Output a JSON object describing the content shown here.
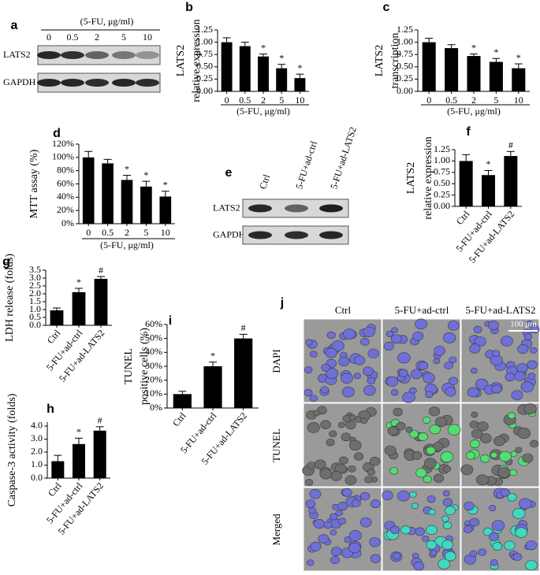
{
  "chart_data": [
    {
      "type": "bar",
      "panel": "b",
      "ylabel": [
        "LATS2",
        "relative expression"
      ],
      "xlabel": "(5-FU, μg/ml)",
      "categories": [
        "0",
        "0.5",
        "2",
        "5",
        "10"
      ],
      "values": [
        1.0,
        0.92,
        0.71,
        0.47,
        0.27
      ],
      "errors": [
        0.09,
        0.08,
        0.05,
        0.08,
        0.08
      ],
      "annotations": [
        null,
        null,
        "*",
        "*",
        "*"
      ],
      "color": "#000000",
      "ylim": [
        0,
        1.25
      ],
      "yticks": [
        {
          "value": 0,
          "label": "0.00"
        },
        0.25,
        {
          "value": 0.5,
          "label": "0.50"
        },
        0.75,
        {
          "value": 1,
          "label": "1.00"
        },
        1.25
      ]
    },
    {
      "type": "bar",
      "panel": "c",
      "ylabel": [
        "LATS2",
        "transcription"
      ],
      "xlabel": "(5-FU, μg/ml)",
      "categories": [
        "0",
        "0.5",
        "2",
        "5",
        "10"
      ],
      "values": [
        1.0,
        0.88,
        0.72,
        0.6,
        0.47
      ],
      "errors": [
        0.08,
        0.07,
        0.04,
        0.07,
        0.09
      ],
      "annotations": [
        null,
        null,
        "*",
        "*",
        "*"
      ],
      "color": "#000000",
      "ylim": [
        0,
        1.25
      ],
      "yticks": [
        {
          "value": 0,
          "label": "0.00"
        },
        0.25,
        {
          "value": 0.5,
          "label": "0.50"
        },
        0.75,
        {
          "value": 1,
          "label": "1.00"
        },
        1.25
      ]
    },
    {
      "type": "bar",
      "panel": "d",
      "ylabel": [
        "MTT assay (%)"
      ],
      "xlabel": "(5-FU, μg/ml)",
      "categories": [
        "0",
        "0.5",
        "2",
        "5",
        "10"
      ],
      "values": [
        100,
        91,
        66,
        56,
        41
      ],
      "errors": [
        9,
        6,
        7,
        8,
        8
      ],
      "annotations": [
        null,
        null,
        "*",
        "*",
        "*"
      ],
      "color": "#000000",
      "ylim": [
        0,
        120
      ],
      "yticks": [
        {
          "value": 0,
          "label": "0%"
        },
        {
          "value": 20,
          "label": "20%"
        },
        {
          "value": 40,
          "label": "40%"
        },
        {
          "value": 60,
          "label": "60%"
        },
        {
          "value": 80,
          "label": "80%"
        },
        {
          "value": 100,
          "label": "100%"
        },
        {
          "value": 120,
          "label": "120%"
        }
      ]
    },
    {
      "type": "bar",
      "panel": "f",
      "ylabel": [
        "LATS2",
        "relative expression"
      ],
      "categories": [
        "Ctrl",
        "5-FU+ad-ctrl",
        "5-FU+ad-LATS2"
      ],
      "values": [
        1.0,
        0.69,
        1.11
      ],
      "errors": [
        0.14,
        0.1,
        0.1
      ],
      "annotations": [
        null,
        "*",
        "#"
      ],
      "color": "#000000",
      "ylim": [
        0,
        1.25
      ],
      "yticks": [
        {
          "value": 0,
          "label": "0.00"
        },
        0.25,
        {
          "value": 0.5,
          "label": "0.50"
        },
        0.75,
        {
          "value": 1,
          "label": "1.00"
        },
        1.25
      ]
    },
    {
      "type": "bar",
      "panel": "g",
      "ylabel": [
        "LDH release (folds)"
      ],
      "categories": [
        "Ctrl",
        "5-FU+ad-ctrl",
        "5-FU+ad-LATS2"
      ],
      "values": [
        0.95,
        2.1,
        2.95
      ],
      "errors": [
        0.15,
        0.25,
        0.15
      ],
      "annotations": [
        null,
        "*",
        "#"
      ],
      "color": "#000000",
      "ylim": [
        0,
        3.5
      ],
      "yticks": [
        {
          "value": 0,
          "label": "0.0"
        },
        0.5,
        {
          "value": 1,
          "label": "1.0"
        },
        1.5,
        {
          "value": 2,
          "label": "2.0"
        },
        2.5,
        {
          "value": 3,
          "label": "3.0"
        },
        3.5
      ]
    },
    {
      "type": "bar",
      "panel": "h",
      "ylabel": [
        "Caspase-3 activity (folds)"
      ],
      "categories": [
        "Ctrl",
        "5-FU+ad-ctrl",
        "5-FU+ad-LATS2"
      ],
      "values": [
        1.3,
        2.62,
        3.65
      ],
      "errors": [
        0.45,
        0.45,
        0.3
      ],
      "annotations": [
        null,
        "*",
        "#"
      ],
      "color": "#000000",
      "ylim": [
        0,
        4.3
      ],
      "yticks": [
        {
          "value": 0,
          "label": "0.0"
        },
        {
          "value": 1,
          "label": "1.0"
        },
        {
          "value": 2,
          "label": "2.0"
        },
        {
          "value": 3,
          "label": "3.0"
        },
        {
          "value": 4,
          "label": "4.0"
        }
      ]
    },
    {
      "type": "bar",
      "panel": "i",
      "ylabel": [
        "TUNEL",
        "positive cells (%)"
      ],
      "categories": [
        "Ctrl",
        "5-FU+ad-ctrl",
        "5-FU+ad-LATS2"
      ],
      "values": [
        10,
        30,
        50
      ],
      "errors": [
        2,
        3,
        3
      ],
      "annotations": [
        null,
        "*",
        "#"
      ],
      "color": "#000000",
      "ylim": [
        0,
        60
      ],
      "yticks": [
        {
          "value": 0,
          "label": "0%"
        },
        {
          "value": 10,
          "label": "10%"
        },
        {
          "value": 20,
          "label": "20%"
        },
        {
          "value": 30,
          "label": "30%"
        },
        {
          "value": 40,
          "label": "40%"
        },
        {
          "value": 50,
          "label": "50%"
        },
        {
          "value": 60,
          "label": "60%"
        }
      ]
    }
  ],
  "blots": [
    {
      "panel": "a",
      "header": "(5-FU, μg/ml)",
      "lanes": [
        "0",
        "0.5",
        "2",
        "5",
        "10"
      ],
      "rows": [
        "LATS2",
        "GAPDH"
      ]
    },
    {
      "panel": "e",
      "lanes": [
        "Ctrl",
        "5-FU+ad-ctrl",
        "5-FU+ad-LATS2"
      ],
      "rows": [
        "LATS2",
        "GAPDH"
      ]
    }
  ],
  "micrograph": {
    "panel": "j",
    "columns": [
      "Ctrl",
      "5-FU+ad-ctrl",
      "5-FU+ad-LATS2"
    ],
    "rows": [
      "DAPI",
      "TUNEL",
      "Merged"
    ],
    "scale_bar": "100 μm"
  }
}
